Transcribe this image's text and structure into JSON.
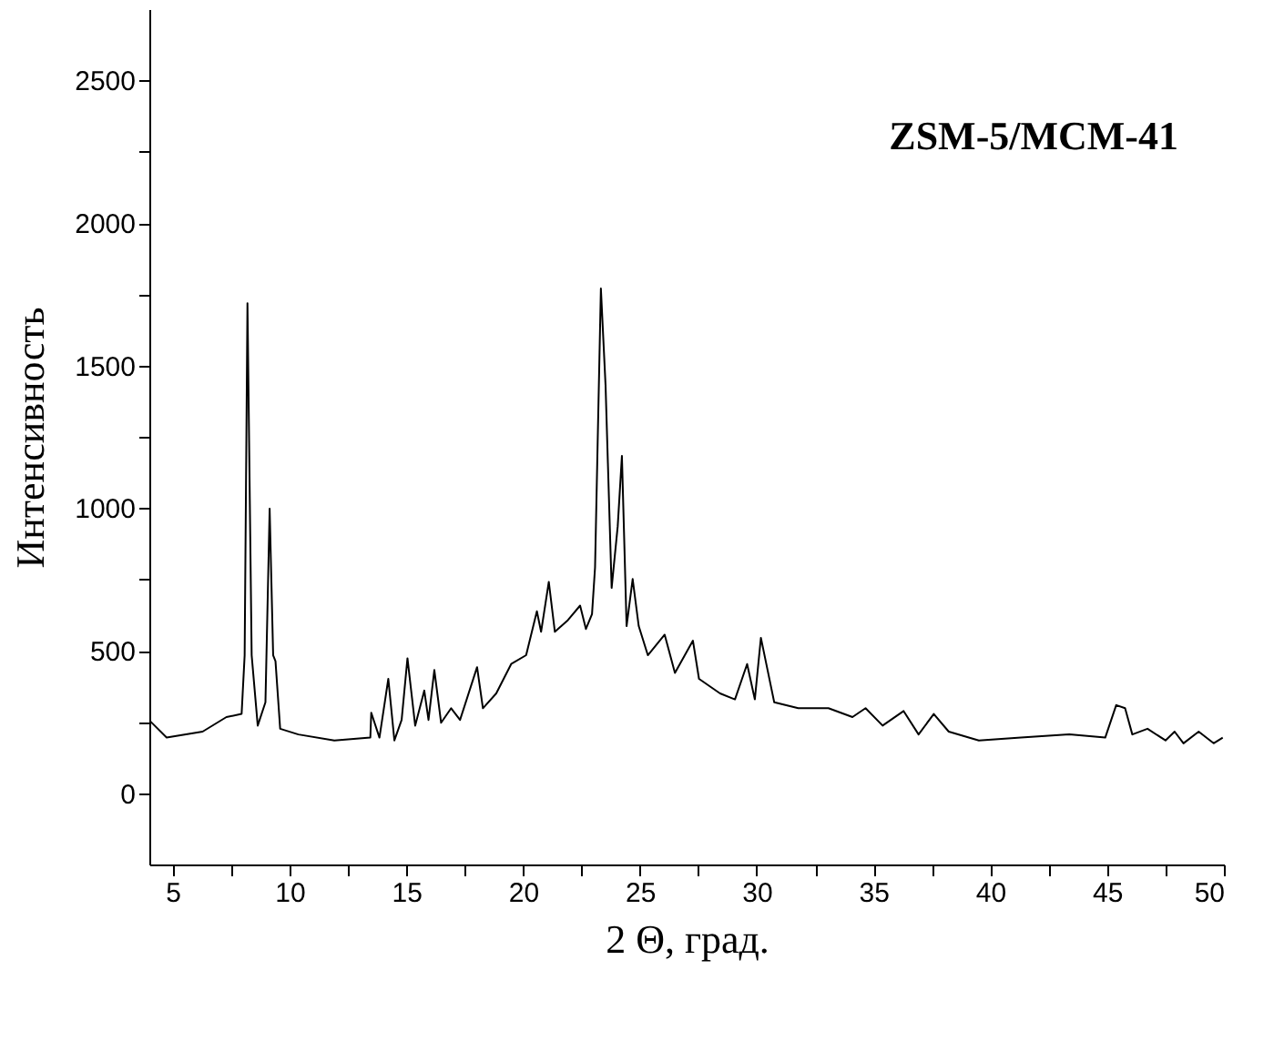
{
  "chart_data": {
    "type": "line",
    "xlabel": "2 Θ, град.",
    "ylabel": "Интенсивность",
    "annotations": [
      "ZSM-5/MCM-41"
    ],
    "x": [
      4.03,
      4.74,
      6.28,
      7.3,
      7.95,
      8.08,
      8.2,
      8.38,
      8.64,
      8.97,
      9.15,
      9.3,
      9.4,
      9.6,
      10.38,
      11.92,
      13.46,
      13.5,
      13.85,
      14.23,
      14.49,
      14.8,
      15.05,
      15.38,
      15.77,
      15.95,
      16.2,
      16.49,
      16.92,
      17.3,
      18.03,
      18.28,
      18.85,
      19.49,
      20.13,
      20.59,
      20.77,
      21.1,
      21.36,
      21.92,
      22.44,
      22.69,
      22.95,
      23.08,
      23.33,
      23.53,
      23.79,
      24.05,
      24.23,
      24.43,
      24.69,
      24.95,
      25.34,
      26.06,
      26.5,
      27.27,
      27.53,
      28.43,
      29.07,
      29.59,
      29.92,
      30.18,
      30.75,
      31.78,
      33.07,
      34.1,
      34.66,
      35.39,
      36.29,
      36.93,
      37.58,
      38.22,
      39.51,
      41.31,
      43.38,
      44.92,
      45.39,
      45.77,
      46.08,
      46.73,
      47.5,
      47.89,
      48.27,
      48.92,
      49.56,
      49.95
    ],
    "series": [
      {
        "color": "#000000",
        "values": [
          253,
          195,
          216,
          267,
          278,
          484,
          1718,
          484,
          237,
          319,
          998,
          484,
          463,
          226,
          206,
          185,
          195,
          282,
          195,
          401,
          185,
          257,
          473,
          237,
          360,
          257,
          432,
          247,
          298,
          257,
          442,
          298,
          350,
          453,
          484,
          638,
          566,
          741,
          566,
          607,
          658,
          576,
          628,
          792,
          1770,
          1430,
          720,
          936,
          1183,
          586,
          751,
          586,
          484,
          556,
          422,
          535,
          401,
          350,
          329,
          453,
          329,
          545,
          319,
          298,
          298,
          267,
          298,
          237,
          288,
          206,
          278,
          216,
          185,
          195,
          206,
          195,
          309,
          298,
          206,
          226,
          185,
          216,
          175,
          216,
          175,
          195
        ]
      }
    ],
    "xlim": [
      4,
      50
    ],
    "xticks": [
      5,
      {
        "value": 7.5,
        "label": null
      },
      10,
      {
        "value": 12.5,
        "label": null
      },
      15,
      {
        "value": 17.5,
        "label": null
      },
      20,
      {
        "value": 22.5,
        "label": null
      },
      25,
      {
        "value": 27.5,
        "label": null
      },
      30,
      {
        "value": 32.5,
        "label": null
      },
      35,
      {
        "value": 37.5,
        "label": null
      },
      40,
      {
        "value": 42.5,
        "label": null
      },
      45,
      {
        "value": 47.5,
        "label": null
      },
      50
    ],
    "ylim": [
      -250,
      2750
    ],
    "yticks": [
      0,
      {
        "value": 250,
        "label": null
      },
      500,
      {
        "value": 750,
        "label": null
      },
      1000,
      {
        "value": 1250,
        "label": null
      },
      1500,
      {
        "value": 1750,
        "label": null
      },
      2000,
      {
        "value": 2250,
        "label": null
      },
      2500
    ],
    "grid": false,
    "line_style": "solid"
  }
}
